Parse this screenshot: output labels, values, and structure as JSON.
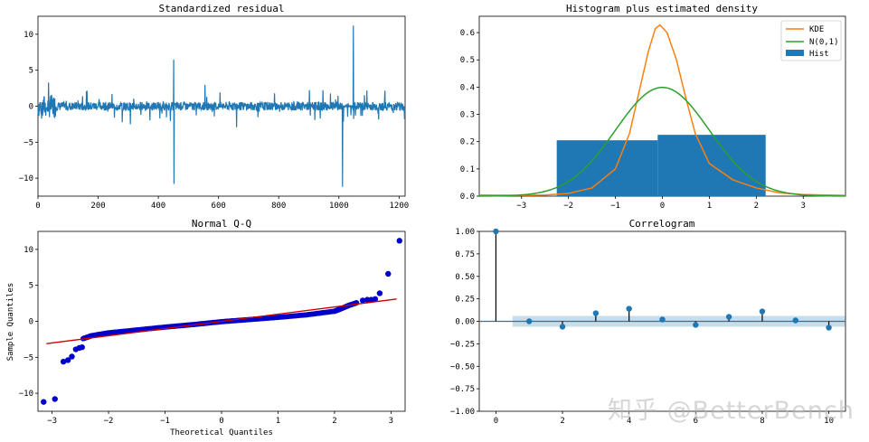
{
  "watermark": "知乎 @BetterBench",
  "chart_data": [
    {
      "type": "line",
      "title": "Standardized residual",
      "xlim": [
        0,
        1220
      ],
      "ylim": [
        -12.5,
        12.5
      ],
      "xticks": [
        0,
        200,
        400,
        600,
        800,
        1000,
        1200
      ],
      "yticks": [
        -10,
        -5,
        0,
        5,
        10
      ],
      "color": "#1f77b4",
      "n_points": 1220,
      "spikes": [
        {
          "x": 451,
          "y": 6.5
        },
        {
          "x": 452,
          "y": -10.8
        },
        {
          "x": 1012,
          "y": -11.2
        },
        {
          "x": 1048,
          "y": 11.2
        }
      ]
    },
    {
      "type": "area",
      "title": "Histogram plus estimated density",
      "xlim": [
        -3.9,
        3.9
      ],
      "ylim": [
        0,
        0.66
      ],
      "xticks": [
        -3,
        -2,
        -1,
        0,
        1,
        2,
        3
      ],
      "yticks": [
        0.0,
        0.1,
        0.2,
        0.3,
        0.4,
        0.5,
        0.6
      ],
      "hist": [
        {
          "x0": -2.25,
          "x1": -0.1,
          "height": 0.205
        },
        {
          "x0": -0.1,
          "x1": 2.2,
          "height": 0.225
        }
      ],
      "kde": {
        "x": [
          -3.9,
          -3.0,
          -2.5,
          -2.0,
          -1.5,
          -1.0,
          -0.7,
          -0.5,
          -0.3,
          -0.15,
          -0.05,
          0.1,
          0.3,
          0.5,
          0.7,
          1.0,
          1.5,
          2.0,
          2.5,
          3.0,
          3.9
        ],
        "y": [
          0.004,
          0.003,
          0.004,
          0.01,
          0.03,
          0.1,
          0.23,
          0.38,
          0.53,
          0.615,
          0.628,
          0.6,
          0.5,
          0.36,
          0.23,
          0.12,
          0.06,
          0.03,
          0.012,
          0.006,
          0.003
        ]
      },
      "legend": [
        {
          "label": "KDE",
          "color": "#ff7f0e",
          "kind": "line"
        },
        {
          "label": "N(0,1)",
          "color": "#2ca02c",
          "kind": "line"
        },
        {
          "label": "Hist",
          "color": "#1f77b4",
          "kind": "patch"
        }
      ],
      "legend_loc": "top-right"
    },
    {
      "type": "scatter",
      "title": "Normal Q-Q",
      "xlabel": "Theoretical Quantiles",
      "ylabel": "Sample Quantiles",
      "xlim": [
        -3.25,
        3.25
      ],
      "ylim": [
        -12.5,
        12.5
      ],
      "xticks": [
        -3,
        -2,
        -1,
        0,
        1,
        2,
        3
      ],
      "yticks": [
        -10,
        -5,
        0,
        5,
        10
      ],
      "reference_line": {
        "x": [
          -3.1,
          3.1
        ],
        "y": [
          -3.1,
          3.1
        ],
        "color": "#cc0000"
      },
      "curve": {
        "x": [
          -2.45,
          -2.3,
          -2.0,
          -1.5,
          -1.0,
          -0.5,
          0.0,
          0.5,
          1.0,
          1.5,
          2.0,
          2.1,
          2.25,
          2.4
        ],
        "y": [
          -2.4,
          -2.0,
          -1.6,
          -1.2,
          -0.8,
          -0.45,
          -0.05,
          0.25,
          0.55,
          0.9,
          1.4,
          1.7,
          2.2,
          2.6
        ]
      },
      "outliers": [
        {
          "x": -3.15,
          "y": -11.2
        },
        {
          "x": -2.95,
          "y": -10.8
        },
        {
          "x": -2.8,
          "y": -5.6
        },
        {
          "x": -2.72,
          "y": -5.4
        },
        {
          "x": -2.65,
          "y": -4.9
        },
        {
          "x": -2.58,
          "y": -3.9
        },
        {
          "x": -2.52,
          "y": -3.7
        },
        {
          "x": -2.47,
          "y": -3.6
        },
        {
          "x": 2.5,
          "y": 2.9
        },
        {
          "x": 2.58,
          "y": 3.0
        },
        {
          "x": 2.65,
          "y": 3.0
        },
        {
          "x": 2.72,
          "y": 3.1
        },
        {
          "x": 2.8,
          "y": 3.9
        },
        {
          "x": 2.95,
          "y": 6.6
        },
        {
          "x": 3.15,
          "y": 11.2
        }
      ],
      "point_color": "#0000cc"
    },
    {
      "type": "bar",
      "title": "Correlogram",
      "xlim": [
        -0.5,
        10.5
      ],
      "ylim": [
        -1.0,
        1.0
      ],
      "xticks": [
        0,
        2,
        4,
        6,
        8,
        10
      ],
      "yticks": [
        -1.0,
        -0.75,
        -0.5,
        -0.25,
        0.0,
        0.25,
        0.5,
        0.75,
        1.0
      ],
      "lags": [
        0,
        1,
        2,
        3,
        4,
        5,
        6,
        7,
        8,
        9,
        10
      ],
      "values": [
        1.0,
        0.0,
        -0.06,
        0.09,
        0.14,
        0.02,
        -0.04,
        0.05,
        0.11,
        0.01,
        -0.07
      ],
      "confidence_band": 0.06
    }
  ]
}
